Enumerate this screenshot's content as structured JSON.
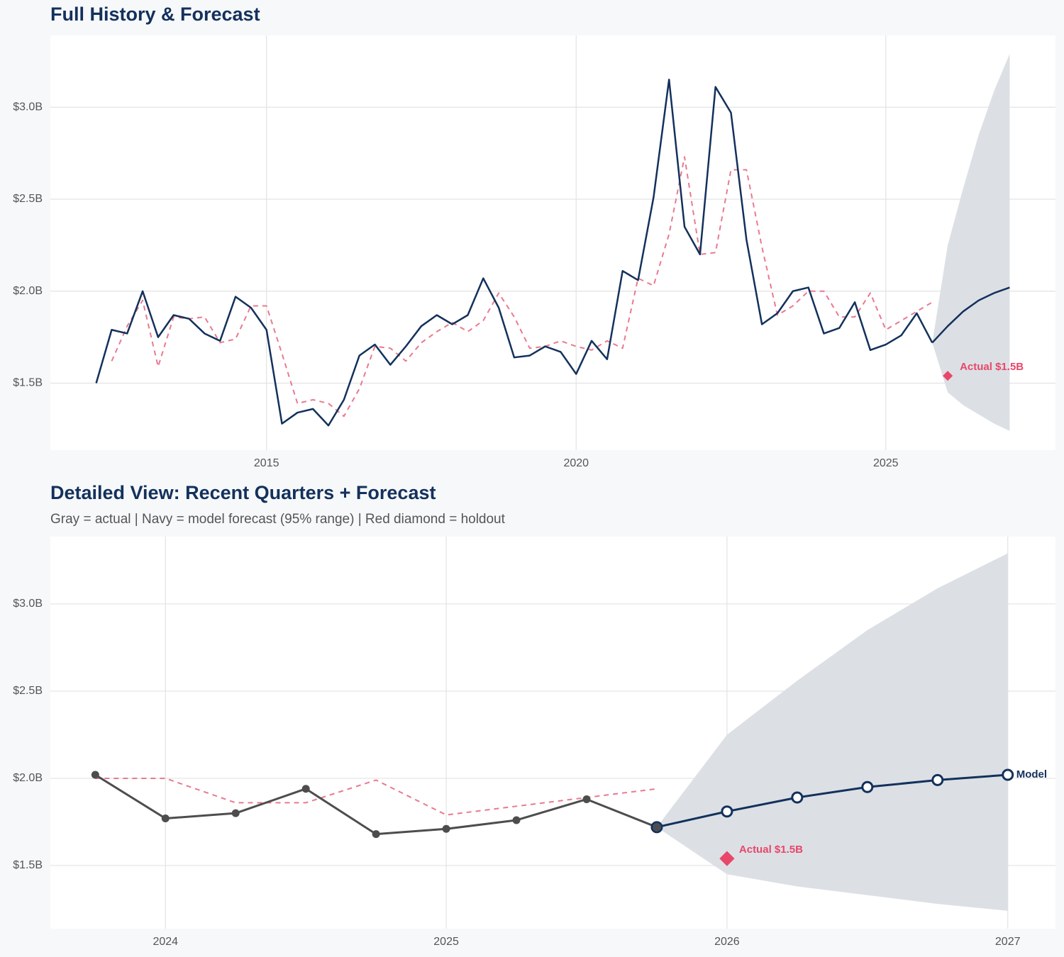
{
  "chart_data": [
    {
      "type": "line",
      "title": "Full History & Forecast",
      "x": [
        2012.25,
        2012.5,
        2012.75,
        2013,
        2013.25,
        2013.5,
        2013.75,
        2014,
        2014.25,
        2014.5,
        2014.75,
        2015,
        2015.25,
        2015.5,
        2015.75,
        2016,
        2016.25,
        2016.5,
        2016.75,
        2017,
        2017.25,
        2017.5,
        2017.75,
        2018,
        2018.25,
        2018.5,
        2018.75,
        2019,
        2019.25,
        2019.5,
        2019.75,
        2020,
        2020.25,
        2020.5,
        2020.75,
        2021,
        2021.25,
        2021.5,
        2021.75,
        2022,
        2022.25,
        2022.5,
        2022.75,
        2023,
        2023.25,
        2023.5,
        2023.75,
        2024,
        2024.25,
        2024.5,
        2024.75,
        2025,
        2025.25,
        2025.5,
        2025.75
      ],
      "series": [
        {
          "color": "#e97a8f",
          "dashed": true,
          "values": [
            null,
            1.62,
            1.81,
            1.95,
            1.59,
            1.86,
            1.85,
            1.86,
            1.72,
            1.74,
            1.92,
            1.92,
            1.66,
            1.39,
            1.41,
            1.39,
            1.32,
            1.47,
            1.7,
            1.69,
            1.62,
            1.72,
            1.78,
            1.83,
            1.78,
            1.84,
            1.99,
            1.86,
            1.69,
            1.7,
            1.73,
            1.7,
            1.68,
            1.73,
            1.69,
            2.07,
            2.03,
            2.31,
            2.73,
            2.2,
            2.21,
            2.66,
            2.66,
            2.24,
            1.87,
            1.92,
            2.0,
            2.0,
            1.86,
            1.86,
            1.99,
            1.79,
            1.84,
            1.89,
            1.94
          ]
        },
        {
          "color": "#13315c",
          "dashed": false,
          "markers": false,
          "values": [
            1.5,
            1.79,
            1.77,
            2.0,
            1.75,
            1.87,
            1.85,
            1.77,
            1.73,
            1.97,
            1.91,
            1.79,
            1.28,
            1.34,
            1.36,
            1.27,
            1.41,
            1.65,
            1.71,
            1.6,
            1.7,
            1.81,
            1.87,
            1.82,
            1.87,
            2.07,
            1.91,
            1.64,
            1.65,
            1.7,
            1.67,
            1.55,
            1.73,
            1.63,
            2.11,
            2.06,
            2.51,
            3.15,
            2.35,
            2.2,
            3.11,
            2.97,
            2.28,
            1.82,
            1.88,
            2.0,
            2.02,
            1.77,
            1.8,
            1.94,
            1.68,
            1.71,
            1.76,
            1.88,
            1.72
          ]
        }
      ],
      "forecast": {
        "color": "#13315c",
        "band_color": "#dadee4",
        "markers": false,
        "x": [
          2025.75,
          2026,
          2026.25,
          2026.5,
          2026.75,
          2027
        ],
        "values": [
          1.72,
          1.81,
          1.89,
          1.95,
          1.99,
          2.02
        ],
        "upper": [
          1.72,
          2.25,
          2.56,
          2.85,
          3.09,
          3.29
        ],
        "lower": [
          1.72,
          1.45,
          1.38,
          1.33,
          1.28,
          1.24
        ]
      },
      "holdout": {
        "x": 2026,
        "value": 1.54,
        "label": "Actual $1.5B",
        "color": "#e8476a"
      },
      "xlim": [
        2011.51,
        2027.74
      ],
      "xticks": [
        2015,
        2020,
        2025
      ],
      "ylim": [
        1.136,
        3.39
      ],
      "yticks": [
        {
          "value": 1.5,
          "label": "$1.5B"
        },
        {
          "value": 2.0,
          "label": "$2.0B"
        },
        {
          "value": 2.5,
          "label": "$2.5B"
        },
        {
          "value": 3.0,
          "label": "$3.0B"
        }
      ],
      "grid": true
    },
    {
      "type": "line",
      "title": "Detailed View: Recent Quarters + Forecast",
      "subtitle": "Gray = actual  |  Navy = model forecast (95% range)  |  Red diamond = holdout",
      "x": [
        2023.75,
        2024,
        2024.25,
        2024.5,
        2024.75,
        2025,
        2025.25,
        2025.5,
        2025.75
      ],
      "series": [
        {
          "color": "#e97a8f",
          "dashed": true,
          "values": [
            2.0,
            2.0,
            1.86,
            1.86,
            1.99,
            1.79,
            1.84,
            1.89,
            1.94
          ]
        },
        {
          "color": "#4d4d4d",
          "dashed": false,
          "markers": true,
          "values": [
            2.02,
            1.77,
            1.8,
            1.94,
            1.68,
            1.71,
            1.76,
            1.88,
            1.72
          ]
        }
      ],
      "forecast": {
        "color": "#13315c",
        "band_color": "#dadee4",
        "markers": true,
        "label": "Model",
        "x": [
          2025.75,
          2026,
          2026.25,
          2026.5,
          2026.75,
          2027
        ],
        "values": [
          1.72,
          1.81,
          1.89,
          1.95,
          1.99,
          2.02
        ],
        "upper": [
          1.72,
          2.25,
          2.56,
          2.85,
          3.09,
          3.29
        ],
        "lower": [
          1.72,
          1.45,
          1.38,
          1.33,
          1.28,
          1.24
        ]
      },
      "holdout": {
        "x": 2026,
        "value": 1.54,
        "label": "Actual $1.5B",
        "color": "#e8476a"
      },
      "xlim": [
        2023.59,
        2027.17
      ],
      "xticks": [
        2024,
        2025,
        2026,
        2027
      ],
      "ylim": [
        1.138,
        3.386
      ],
      "yticks": [
        {
          "value": 1.5,
          "label": "$1.5B"
        },
        {
          "value": 2.0,
          "label": "$2.0B"
        },
        {
          "value": 2.5,
          "label": "$2.5B"
        },
        {
          "value": 3.0,
          "label": "$3.0B"
        }
      ],
      "grid": true
    }
  ]
}
